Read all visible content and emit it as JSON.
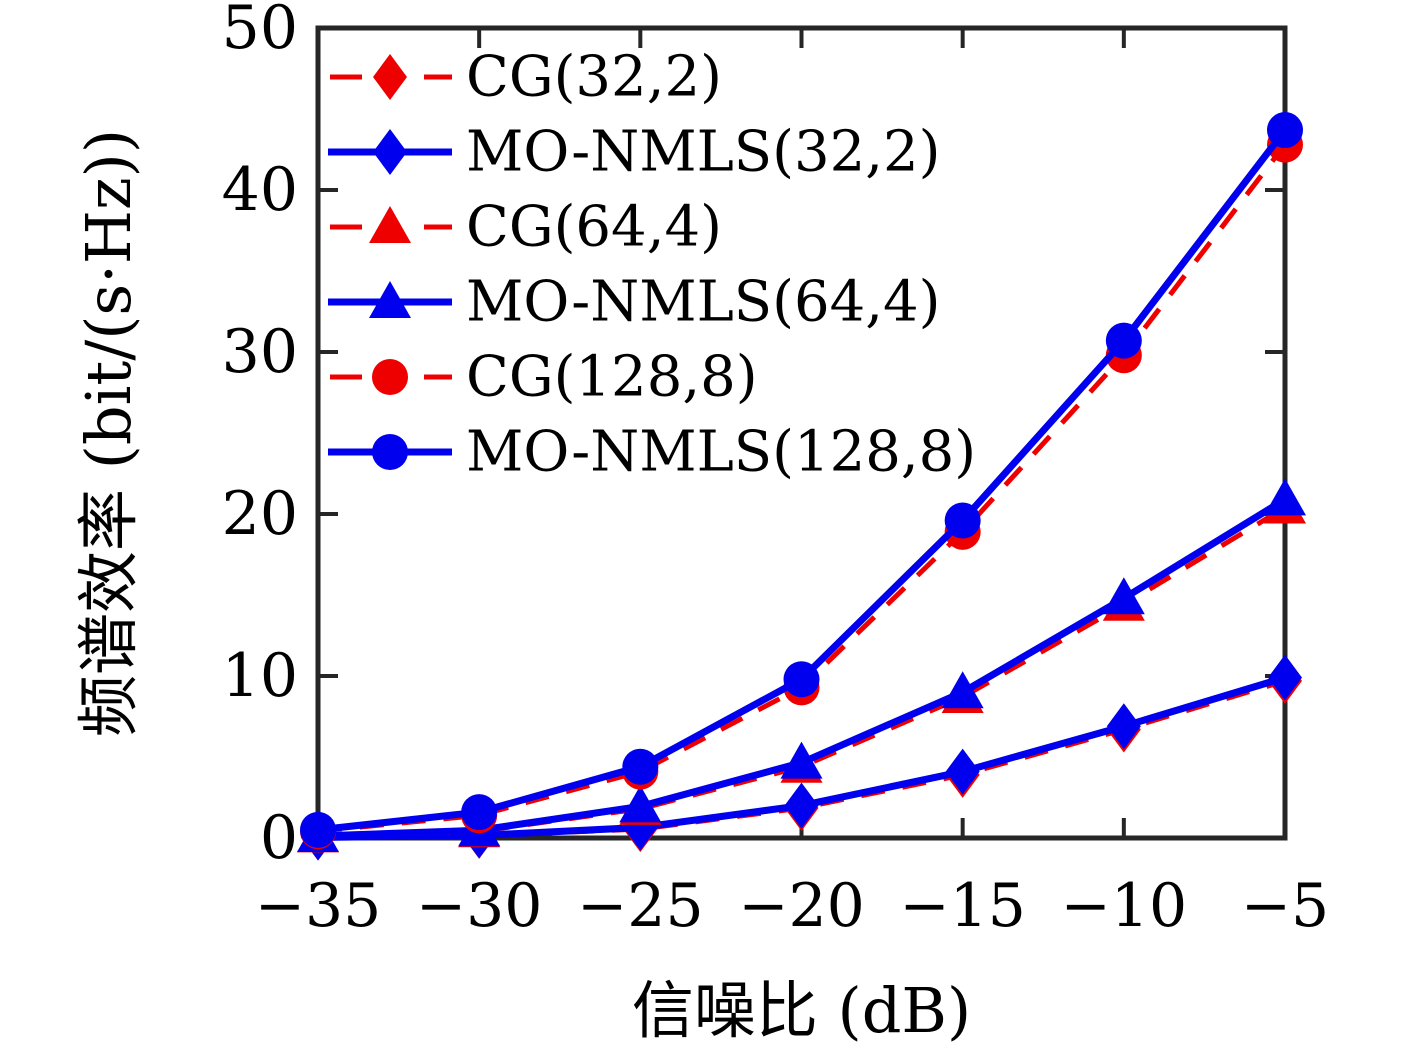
{
  "figure": {
    "background": "#ffffff",
    "frame_color": "#262626",
    "cg_color": "#ef0000",
    "monmls_color": "#0000ee"
  },
  "chart_data": {
    "type": "line",
    "title": "",
    "xlabel": "信噪比 (dB)",
    "ylabel": "频谱效率 (bit/(s·Hz))",
    "xlim": [
      -35,
      -5
    ],
    "ylim": [
      0,
      50
    ],
    "grid": false,
    "legend_position": "inside-top-left",
    "x": [
      -35,
      -30,
      -25,
      -20,
      -15,
      -10,
      -5
    ],
    "xtick_labels": [
      "−35",
      "−30",
      "−25",
      "−20",
      "−15",
      "−10",
      "−5"
    ],
    "ytick_values": [
      0,
      10,
      20,
      30,
      40,
      50
    ],
    "ytick_labels": [
      "0",
      "10",
      "20",
      "30",
      "40",
      "50"
    ],
    "series": [
      {
        "name": "CG(32,2)",
        "color": "#ef0000",
        "line": "dashed",
        "marker": "diamond",
        "values": [
          0.02,
          0.13,
          0.55,
          1.85,
          3.9,
          6.7,
          9.7
        ]
      },
      {
        "name": "MO-NMLS(32,2)",
        "color": "#0000ee",
        "line": "solid",
        "marker": "diamond",
        "values": [
          0.03,
          0.16,
          0.65,
          2.0,
          4.1,
          6.9,
          9.9
        ]
      },
      {
        "name": "CG(64,4)",
        "color": "#ef0000",
        "line": "dashed",
        "marker": "triangle",
        "values": [
          0.1,
          0.42,
          1.8,
          4.4,
          8.7,
          14.4,
          20.4
        ]
      },
      {
        "name": "MO-NMLS(64,4)",
        "color": "#0000ee",
        "line": "solid",
        "marker": "triangle",
        "values": [
          0.12,
          0.48,
          1.95,
          4.65,
          9.0,
          14.8,
          20.9
        ]
      },
      {
        "name": "CG(128,8)",
        "color": "#ef0000",
        "line": "dashed",
        "marker": "circle",
        "values": [
          0.42,
          1.4,
          4.1,
          9.3,
          18.9,
          29.8,
          42.8
        ]
      },
      {
        "name": "MO-NMLS(128,8)",
        "color": "#0000ee",
        "line": "solid",
        "marker": "circle",
        "values": [
          0.5,
          1.6,
          4.4,
          9.8,
          19.6,
          30.7,
          43.7
        ]
      }
    ]
  }
}
